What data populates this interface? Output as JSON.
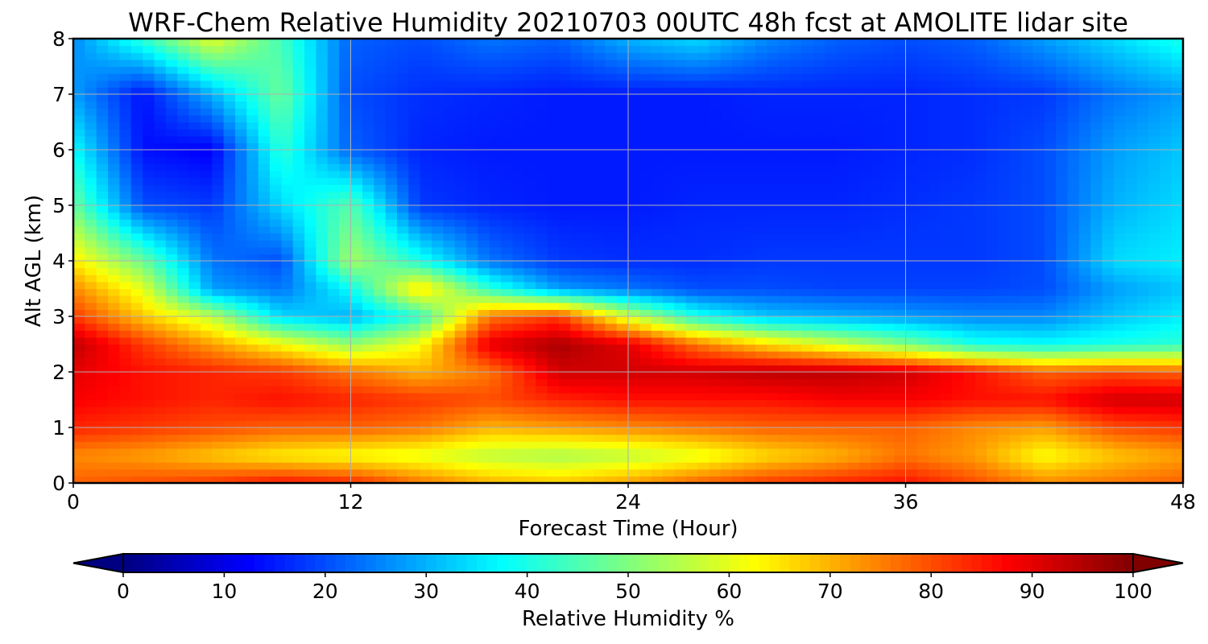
{
  "chart_data": {
    "type": "heatmap",
    "title": "WRF-Chem Relative Humidity 20210703 00UTC 48h fcst at AMOLITE lidar site",
    "xlabel": "Forecast Time (Hour)",
    "ylabel": "Alt AGL (km)",
    "xlim": [
      0,
      48
    ],
    "ylim": [
      0,
      8
    ],
    "x_ticks": [
      0,
      12,
      24,
      36,
      48
    ],
    "y_ticks": [
      0,
      1,
      2,
      3,
      4,
      5,
      6,
      7,
      8
    ],
    "grid": true,
    "x": [
      0,
      3,
      6,
      9,
      12,
      15,
      18,
      21,
      24,
      27,
      30,
      33,
      36,
      39,
      42,
      45,
      48
    ],
    "y": [
      0,
      0.5,
      1,
      1.5,
      2,
      2.5,
      3,
      3.5,
      4,
      5,
      6,
      7,
      8
    ],
    "z": [
      [
        78,
        80,
        82,
        86,
        84,
        76,
        70,
        68,
        72,
        78,
        82,
        84,
        86,
        80,
        74,
        76,
        78
      ],
      [
        74,
        72,
        68,
        64,
        62,
        60,
        56,
        54,
        56,
        60,
        66,
        70,
        76,
        72,
        62,
        68,
        72
      ],
      [
        84,
        82,
        80,
        78,
        78,
        76,
        70,
        72,
        74,
        76,
        78,
        78,
        78,
        74,
        72,
        80,
        82
      ],
      [
        88,
        86,
        84,
        86,
        84,
        82,
        80,
        84,
        86,
        86,
        86,
        88,
        88,
        86,
        86,
        92,
        92
      ],
      [
        90,
        86,
        84,
        82,
        76,
        70,
        76,
        92,
        92,
        92,
        94,
        94,
        92,
        86,
        78,
        80,
        78
      ],
      [
        94,
        82,
        72,
        62,
        52,
        62,
        90,
        96,
        90,
        76,
        66,
        58,
        50,
        40,
        38,
        40,
        42
      ],
      [
        82,
        68,
        56,
        34,
        30,
        42,
        76,
        82,
        58,
        40,
        32,
        30,
        28,
        26,
        26,
        32,
        36
      ],
      [
        74,
        60,
        28,
        24,
        38,
        66,
        42,
        28,
        24,
        20,
        20,
        19,
        19,
        19,
        20,
        28,
        32
      ],
      [
        64,
        48,
        24,
        20,
        54,
        40,
        24,
        18,
        17,
        17,
        18,
        18,
        18,
        18,
        20,
        34,
        36
      ],
      [
        48,
        20,
        18,
        34,
        46,
        18,
        16,
        15,
        15,
        16,
        16,
        16,
        17,
        18,
        20,
        30,
        34
      ],
      [
        38,
        14,
        12,
        42,
        22,
        16,
        15,
        15,
        15,
        15,
        15,
        15,
        16,
        17,
        20,
        28,
        32
      ],
      [
        28,
        14,
        30,
        48,
        20,
        17,
        16,
        15,
        15,
        15,
        16,
        16,
        16,
        17,
        18,
        24,
        28
      ],
      [
        26,
        42,
        60,
        44,
        22,
        20,
        24,
        22,
        30,
        34,
        26,
        22,
        20,
        22,
        28,
        34,
        40
      ]
    ],
    "colorbar": {
      "label": "Relative Humidity %",
      "ticks": [
        0,
        10,
        20,
        30,
        40,
        50,
        60,
        70,
        80,
        90,
        100
      ],
      "range": [
        0,
        100
      ],
      "extend": "both",
      "colormap": "jet"
    }
  }
}
